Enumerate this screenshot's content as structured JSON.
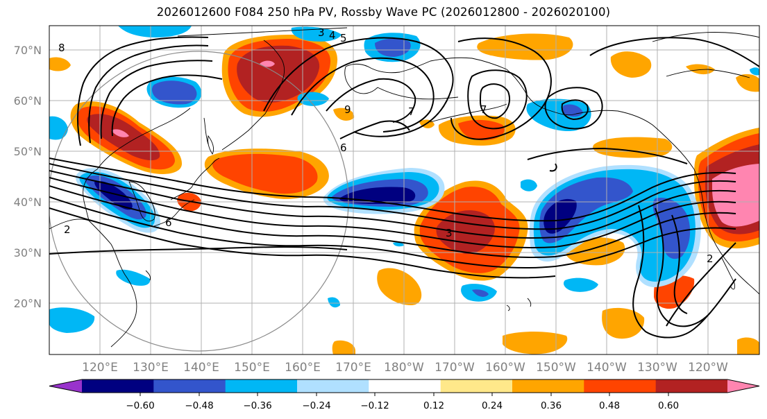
{
  "title": "2026012600 F084 250 hPa PV, Rossby Wave PC (2026012800 - 2026020100)",
  "map": {
    "projection": "plate-carree",
    "lon_range": [
      110,
      250
    ],
    "lat_range": [
      10,
      75
    ],
    "lat_labels": [
      "70°N",
      "60°N",
      "50°N",
      "40°N",
      "30°N",
      "20°N"
    ],
    "lon_labels": [
      "120°E",
      "130°E",
      "140°E",
      "150°E",
      "160°E",
      "170°E",
      "180°W",
      "170°W",
      "160°W",
      "150°W",
      "140°W",
      "130°W",
      "120°W"
    ],
    "gridline_color": "#b0b0b0",
    "coastline_color": "#000000",
    "contour_color": "#000000",
    "contour_labels": [
      "8",
      "3",
      "4",
      "5",
      "2",
      "6",
      "7",
      "9",
      "2",
      "3",
      "6",
      "7"
    ]
  },
  "colorbar": {
    "tick_labels": [
      "−0.60",
      "−0.48",
      "−0.36",
      "−0.24",
      "−0.12",
      "0.12",
      "0.24",
      "0.36",
      "0.48",
      "0.60"
    ],
    "colors": [
      "#9933cc",
      "#000080",
      "#3355cc",
      "#00b7f5",
      "#b0e0ff",
      "#ffffff",
      "#ffe88a",
      "#ffa500",
      "#ff4400",
      "#b22222",
      "#ff85b0"
    ],
    "extend": "both"
  }
}
